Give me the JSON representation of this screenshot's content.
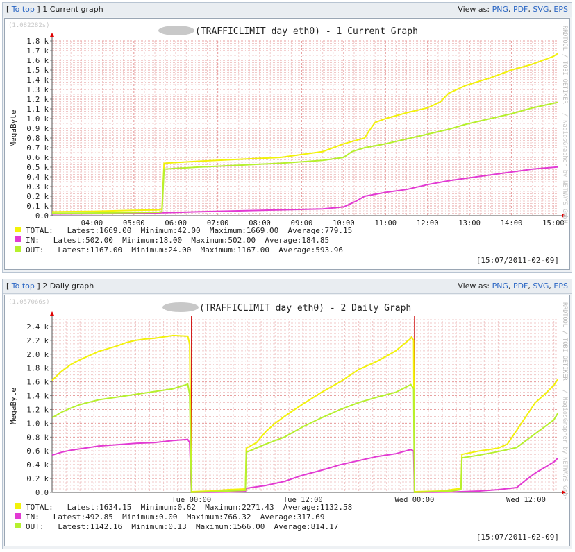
{
  "panels": [
    {
      "header": {
        "bracket_open": "[",
        "to_top": "To top",
        "bracket_close": "]",
        "title": "1 Current graph",
        "view_as": "View as:",
        "formats": [
          "PNG",
          "PDF",
          "SVG",
          "EPS"
        ]
      },
      "exec_time": "(1.082282s)",
      "sidebar_text": "RRDTOOL / TOBI OETIKER",
      "sidebar_text2": "/ NagiosGrapher by NETWAYS GmbH",
      "timestamp": "[15:07/2011-02-09]",
      "legend": [
        {
          "label": "TOTAL:",
          "stats": "Latest:1669.00  Minimum:42.00  Maximum:1669.00  Average:779.15",
          "color": "#f2f20a"
        },
        {
          "label": "IN:",
          "stats": "Latest:502.00  Minimum:18.00  Maximum:502.00  Average:184.85",
          "color": "#e23ad3"
        },
        {
          "label": "OUT:",
          "stats": "Latest:1167.00  Minimum:24.00  Maximum:1167.00  Average:593.96",
          "color": "#b6f02e"
        }
      ],
      "chart_data": {
        "type": "line",
        "title": "(TRAFFICLIMIT day eth0) - 1 Current Graph",
        "ylabel": "MegaByte",
        "xlabel": "",
        "x_unit": "hour",
        "xlim": [
          3.05,
          15.1
        ],
        "ylim": [
          0,
          1800
        ],
        "x_ticks": [
          {
            "x": 4,
            "label": "04:00"
          },
          {
            "x": 5,
            "label": "05:00"
          },
          {
            "x": 6,
            "label": "06:00"
          },
          {
            "x": 7,
            "label": "07:00"
          },
          {
            "x": 8,
            "label": "08:00"
          },
          {
            "x": 9,
            "label": "09:00"
          },
          {
            "x": 10,
            "label": "10:00"
          },
          {
            "x": 11,
            "label": "11:00"
          },
          {
            "x": 12,
            "label": "12:00"
          },
          {
            "x": 13,
            "label": "13:00"
          },
          {
            "x": 14,
            "label": "14:00"
          },
          {
            "x": 15,
            "label": "15:00"
          }
        ],
        "y_ticks": [
          {
            "y": 0,
            "label": "0.0"
          },
          {
            "y": 100,
            "label": "0.1 k"
          },
          {
            "y": 200,
            "label": "0.2 k"
          },
          {
            "y": 300,
            "label": "0.3 k"
          },
          {
            "y": 400,
            "label": "0.4 k"
          },
          {
            "y": 500,
            "label": "0.5 k"
          },
          {
            "y": 600,
            "label": "0.6 k"
          },
          {
            "y": 700,
            "label": "0.7 k"
          },
          {
            "y": 800,
            "label": "0.8 k"
          },
          {
            "y": 900,
            "label": "0.9 k"
          },
          {
            "y": 1000,
            "label": "1.0 k"
          },
          {
            "y": 1100,
            "label": "1.1 k"
          },
          {
            "y": 1200,
            "label": "1.2 k"
          },
          {
            "y": 1300,
            "label": "1.3 k"
          },
          {
            "y": 1400,
            "label": "1.4 k"
          },
          {
            "y": 1500,
            "label": "1.5 k"
          },
          {
            "y": 1600,
            "label": "1.6 k"
          },
          {
            "y": 1700,
            "label": "1.7 k"
          },
          {
            "y": 1800,
            "label": "1.8 k"
          }
        ],
        "vlines": [],
        "series": [
          {
            "name": "TOTAL",
            "color": "#f2f20a",
            "x": [
              3.05,
              4.0,
              5.0,
              5.6,
              5.67,
              5.72,
              6.5,
              7.5,
              8.5,
              9.5,
              10.0,
              10.5,
              10.6,
              10.75,
              11.0,
              11.5,
              12.0,
              12.3,
              12.5,
              12.9,
              13.5,
              14.0,
              14.5,
              15.0,
              15.1
            ],
            "y": [
              40,
              45,
              55,
              60,
              70,
              540,
              560,
              580,
              600,
              660,
              740,
              800,
              870,
              960,
              1000,
              1060,
              1110,
              1170,
              1260,
              1340,
              1420,
              1500,
              1560,
              1640,
              1669
            ]
          },
          {
            "name": "IN",
            "color": "#e23ad3",
            "x": [
              3.05,
              5.0,
              5.67,
              6.5,
              7.5,
              8.5,
              9.5,
              10.0,
              10.3,
              10.5,
              11.0,
              11.5,
              12.0,
              12.5,
              13.0,
              13.5,
              14.0,
              14.5,
              15.1
            ],
            "y": [
              18,
              22,
              30,
              40,
              50,
              60,
              70,
              90,
              150,
              200,
              240,
              270,
              320,
              360,
              390,
              420,
              450,
              480,
              502
            ]
          },
          {
            "name": "OUT",
            "color": "#b6f02e",
            "x": [
              3.05,
              4.0,
              5.0,
              5.6,
              5.67,
              5.72,
              6.5,
              7.5,
              8.5,
              9.5,
              10.0,
              10.2,
              10.5,
              11.0,
              11.5,
              12.0,
              12.5,
              12.9,
              13.5,
              14.0,
              14.5,
              15.1
            ],
            "y": [
              25,
              28,
              32,
              36,
              40,
              480,
              500,
              520,
              540,
              570,
              600,
              660,
              700,
              740,
              790,
              840,
              890,
              940,
              1000,
              1050,
              1110,
              1167
            ]
          }
        ]
      }
    },
    {
      "header": {
        "bracket_open": "[",
        "to_top": "To top",
        "bracket_close": "]",
        "title": "2 Daily graph",
        "view_as": "View as:",
        "formats": [
          "PNG",
          "PDF",
          "SVG",
          "EPS"
        ]
      },
      "exec_time": "(1.057066s)",
      "sidebar_text": "RRDTOOL / TOBI OETIKER",
      "sidebar_text2": "/ NagiosGrapher by NETWAYS GmbH",
      "timestamp": "[15:07/2011-02-09]",
      "legend": [
        {
          "label": "TOTAL:",
          "stats": "Latest:1634.15  Minimum:0.62  Maximum:2271.43  Average:1132.58",
          "color": "#f2f20a"
        },
        {
          "label": "IN:",
          "stats": "Latest:492.85  Minimum:0.00  Maximum:766.32  Average:317.69",
          "color": "#e23ad3"
        },
        {
          "label": "OUT:",
          "stats": "Latest:1142.16  Minimum:0.13  Maximum:1566.00  Average:814.17",
          "color": "#b6f02e"
        }
      ],
      "chart_data": {
        "type": "line",
        "title": "(TRAFFICLIMIT day eth0) - 2 Daily Graph",
        "ylabel": "MegaByte",
        "xlabel": "",
        "x_unit": "hours since Tue 00:00",
        "xlim": [
          -15.0,
          39.4
        ],
        "ylim": [
          0,
          2500
        ],
        "x_ticks": [
          {
            "x": 0,
            "label": "Tue 00:00"
          },
          {
            "x": 12,
            "label": "Tue 12:00"
          },
          {
            "x": 24,
            "label": "Wed 00:00"
          },
          {
            "x": 36,
            "label": "Wed 12:00"
          }
        ],
        "y_ticks": [
          {
            "y": 0,
            "label": "0.0"
          },
          {
            "y": 200,
            "label": "0.2 k"
          },
          {
            "y": 400,
            "label": "0.4 k"
          },
          {
            "y": 600,
            "label": "0.6 k"
          },
          {
            "y": 800,
            "label": "0.8 k"
          },
          {
            "y": 1000,
            "label": "1.0 k"
          },
          {
            "y": 1200,
            "label": "1.2 k"
          },
          {
            "y": 1400,
            "label": "1.4 k"
          },
          {
            "y": 1600,
            "label": "1.6 k"
          },
          {
            "y": 1800,
            "label": "1.8 k"
          },
          {
            "y": 2000,
            "label": "2.0 k"
          },
          {
            "y": 2200,
            "label": "2.2 k"
          },
          {
            "y": 2400,
            "label": "2.4 k"
          }
        ],
        "vlines": [
          0,
          24
        ],
        "series": [
          {
            "name": "TOTAL",
            "color": "#f2f20a",
            "x": [
              -15.0,
              -14.0,
              -13.0,
              -12.0,
              -11.0,
              -10.0,
              -9.0,
              -8.0,
              -7.0,
              -6.0,
              -5.0,
              -4.0,
              -3.0,
              -2.0,
              -0.4,
              -0.2,
              0.0,
              2.0,
              4.0,
              5.8,
              5.9,
              7.0,
              8.0,
              9.0,
              10.0,
              12.0,
              14.0,
              16.0,
              18.0,
              20.0,
              22.0,
              23.6,
              23.7,
              23.9,
              24.0,
              27.0,
              28.0,
              29.0,
              29.1,
              31.0,
              33.0,
              34.0,
              35.0,
              36.0,
              37.0,
              38.0,
              39.0,
              39.4
            ],
            "y": [
              1620,
              1750,
              1850,
              1920,
              1980,
              2040,
              2080,
              2120,
              2170,
              2200,
              2220,
              2230,
              2250,
              2270,
              2260,
              2150,
              10,
              20,
              40,
              50,
              640,
              720,
              880,
              1000,
              1100,
              1280,
              1450,
              1600,
              1780,
              1900,
              2050,
              2230,
              2250,
              2200,
              10,
              20,
              40,
              60,
              550,
              600,
              640,
              700,
              900,
              1100,
              1300,
              1420,
              1550,
              1634
            ]
          },
          {
            "name": "IN",
            "color": "#e23ad3",
            "x": [
              -15.0,
              -14.0,
              -13.0,
              -12.0,
              -10.0,
              -8.0,
              -6.0,
              -4.0,
              -2.0,
              -0.4,
              -0.2,
              0.0,
              4.0,
              5.8,
              5.9,
              8.0,
              10.0,
              12.0,
              14.0,
              16.0,
              18.0,
              20.0,
              22.0,
              23.6,
              23.9,
              24.0,
              28.0,
              31.0,
              33.0,
              35.0,
              36.0,
              37.0,
              38.0,
              39.0,
              39.4
            ],
            "y": [
              540,
              580,
              610,
              630,
              670,
              690,
              710,
              720,
              750,
              766,
              720,
              0,
              5,
              10,
              60,
              100,
              160,
              250,
              320,
              400,
              460,
              520,
              560,
              620,
              600,
              0,
              5,
              20,
              40,
              70,
              180,
              280,
              360,
              440,
              493
            ]
          },
          {
            "name": "OUT",
            "color": "#b6f02e",
            "x": [
              -15.0,
              -14.0,
              -13.0,
              -12.0,
              -10.0,
              -8.0,
              -6.0,
              -4.0,
              -2.0,
              -0.4,
              -0.2,
              0.0,
              4.0,
              5.8,
              5.9,
              8.0,
              10.0,
              12.0,
              14.0,
              16.0,
              18.0,
              20.0,
              22.0,
              23.6,
              23.9,
              24.0,
              28.0,
              29.0,
              29.1,
              31.0,
              33.0,
              35.0,
              36.0,
              37.0,
              38.0,
              39.0,
              39.4
            ],
            "y": [
              1080,
              1160,
              1220,
              1270,
              1340,
              1380,
              1420,
              1460,
              1500,
              1566,
              1420,
              0,
              20,
              30,
              580,
              700,
              800,
              950,
              1080,
              1200,
              1300,
              1380,
              1450,
              1560,
              1500,
              0,
              20,
              40,
              500,
              540,
              590,
              650,
              750,
              850,
              950,
              1050,
              1142
            ]
          }
        ]
      }
    }
  ]
}
